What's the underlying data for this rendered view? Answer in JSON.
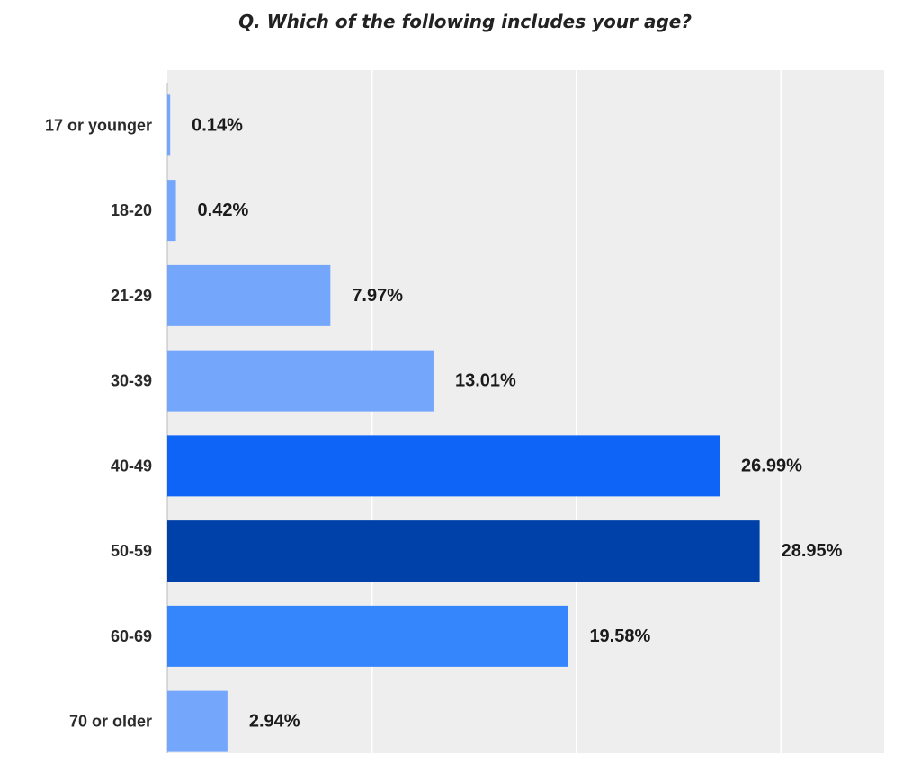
{
  "chart_data": {
    "type": "bar",
    "orientation": "horizontal",
    "title": "Q. Which of the following includes your age?",
    "xlabel": "",
    "ylabel": "",
    "categories": [
      "17 or younger",
      "18-20",
      "21-29",
      "30-39",
      "40-49",
      "50-59",
      "60-69",
      "70 or older"
    ],
    "values": [
      0.14,
      0.42,
      7.97,
      13.01,
      26.99,
      28.95,
      19.58,
      2.94
    ],
    "value_labels": [
      "0.14%",
      "0.42%",
      "7.97%",
      "13.01%",
      "26.99%",
      "28.95%",
      "19.58%",
      "2.94%"
    ],
    "colors": [
      "#74a6fb",
      "#74a6fb",
      "#74a6fb",
      "#74a6fb",
      "#0f64f8",
      "#0041a9",
      "#3586fd",
      "#74a6fb"
    ],
    "xlim": [
      0,
      35
    ],
    "gridlines": [
      10,
      20,
      30
    ],
    "grid": true,
    "legend": "none",
    "background_color": "#eeeeee"
  }
}
